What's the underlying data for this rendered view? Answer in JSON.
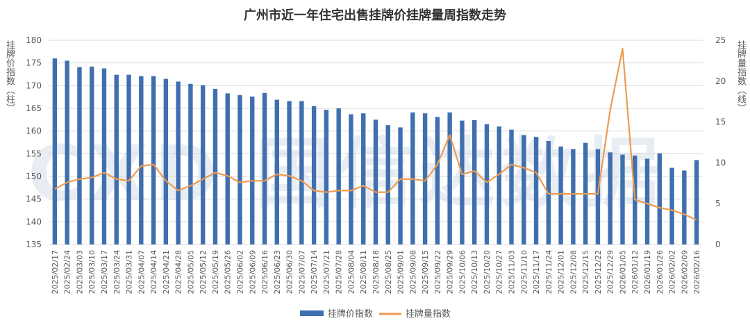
{
  "chart_data": {
    "type": "bar+line",
    "title": "广州市近一年住宅出售挂牌价挂牌量周指数走势",
    "y_left_label": "挂牌价指数（柱）",
    "y_right_label": "挂牌量指数（线）",
    "y_left_range": [
      135,
      180
    ],
    "y_left_ticks": [
      "135",
      "140",
      "145",
      "150",
      "155",
      "160",
      "165",
      "170",
      "175",
      "180"
    ],
    "y_right_range": [
      0,
      25
    ],
    "y_right_ticks": [
      "0",
      "5",
      "10",
      "15",
      "20",
      "25"
    ],
    "grid": true,
    "legend_position": "bottom",
    "x": [
      "2025/02/17",
      "2025/02/24",
      "2025/03/03",
      "2025/03/10",
      "2025/03/17",
      "2025/03/24",
      "2025/03/31",
      "2025/04/07",
      "2025/04/14",
      "2025/04/21",
      "2025/04/28",
      "2025/05/05",
      "2025/05/12",
      "2025/05/19",
      "2025/05/26",
      "2025/06/02",
      "2025/06/09",
      "2025/06/16",
      "2025/06/23",
      "2025/06/30",
      "2025/07/07",
      "2025/07/14",
      "2025/07/21",
      "2025/07/28",
      "2025/08/04",
      "2025/08/11",
      "2025/08/18",
      "2025/08/25",
      "2025/09/01",
      "2025/09/08",
      "2025/09/15",
      "2025/09/22",
      "2025/09/29",
      "2025/10/06",
      "2025/10/13",
      "2025/10/20",
      "2025/10/27",
      "2025/11/03",
      "2025/11/10",
      "2025/11/17",
      "2025/11/24",
      "2025/12/01",
      "2025/12/08",
      "2025/12/15",
      "2025/12/22",
      "2025/12/29",
      "2026/01/05",
      "2026/01/12",
      "2026/01/19",
      "2026/01/26",
      "2026/02/02",
      "2026/02/09",
      "2026/02/16"
    ],
    "series": [
      {
        "name": "挂牌价指数",
        "type": "bar",
        "axis": "left",
        "color": "#3f6faf",
        "values": [
          176.0,
          175.5,
          174.1,
          174.2,
          173.8,
          172.4,
          172.4,
          172.1,
          172.1,
          171.5,
          170.9,
          170.4,
          170.1,
          169.3,
          168.3,
          167.9,
          167.6,
          168.4,
          166.9,
          166.6,
          166.6,
          165.5,
          164.7,
          165.0,
          163.7,
          163.9,
          162.5,
          161.3,
          160.8,
          164.1,
          163.9,
          163.1,
          164.1,
          162.3,
          162.4,
          161.5,
          161.0,
          160.3,
          159.1,
          158.7,
          157.8,
          156.6,
          156.0,
          157.4,
          156.0,
          155.3,
          154.8,
          154.6,
          153.9,
          155.1,
          151.9,
          151.3,
          153.6
        ]
      },
      {
        "name": "挂牌量指数",
        "type": "line",
        "axis": "right",
        "color": "#ed9b4f",
        "values": [
          6.8,
          7.6,
          8.0,
          8.2,
          8.8,
          8.0,
          7.8,
          9.6,
          9.8,
          7.8,
          6.6,
          7.2,
          8.0,
          8.8,
          8.4,
          7.6,
          7.8,
          7.8,
          8.6,
          8.4,
          7.8,
          6.6,
          6.4,
          6.6,
          6.6,
          7.2,
          6.4,
          6.4,
          8.0,
          8.0,
          7.8,
          9.8,
          13.4,
          8.6,
          9.0,
          7.6,
          8.6,
          9.8,
          9.4,
          8.8,
          6.2,
          6.2,
          6.2,
          6.2,
          6.2,
          16.5,
          24.0,
          5.5,
          5.0,
          4.5,
          4.2,
          3.7,
          3.0
        ]
      }
    ]
  },
  "watermark": "CXD 国信达数据"
}
